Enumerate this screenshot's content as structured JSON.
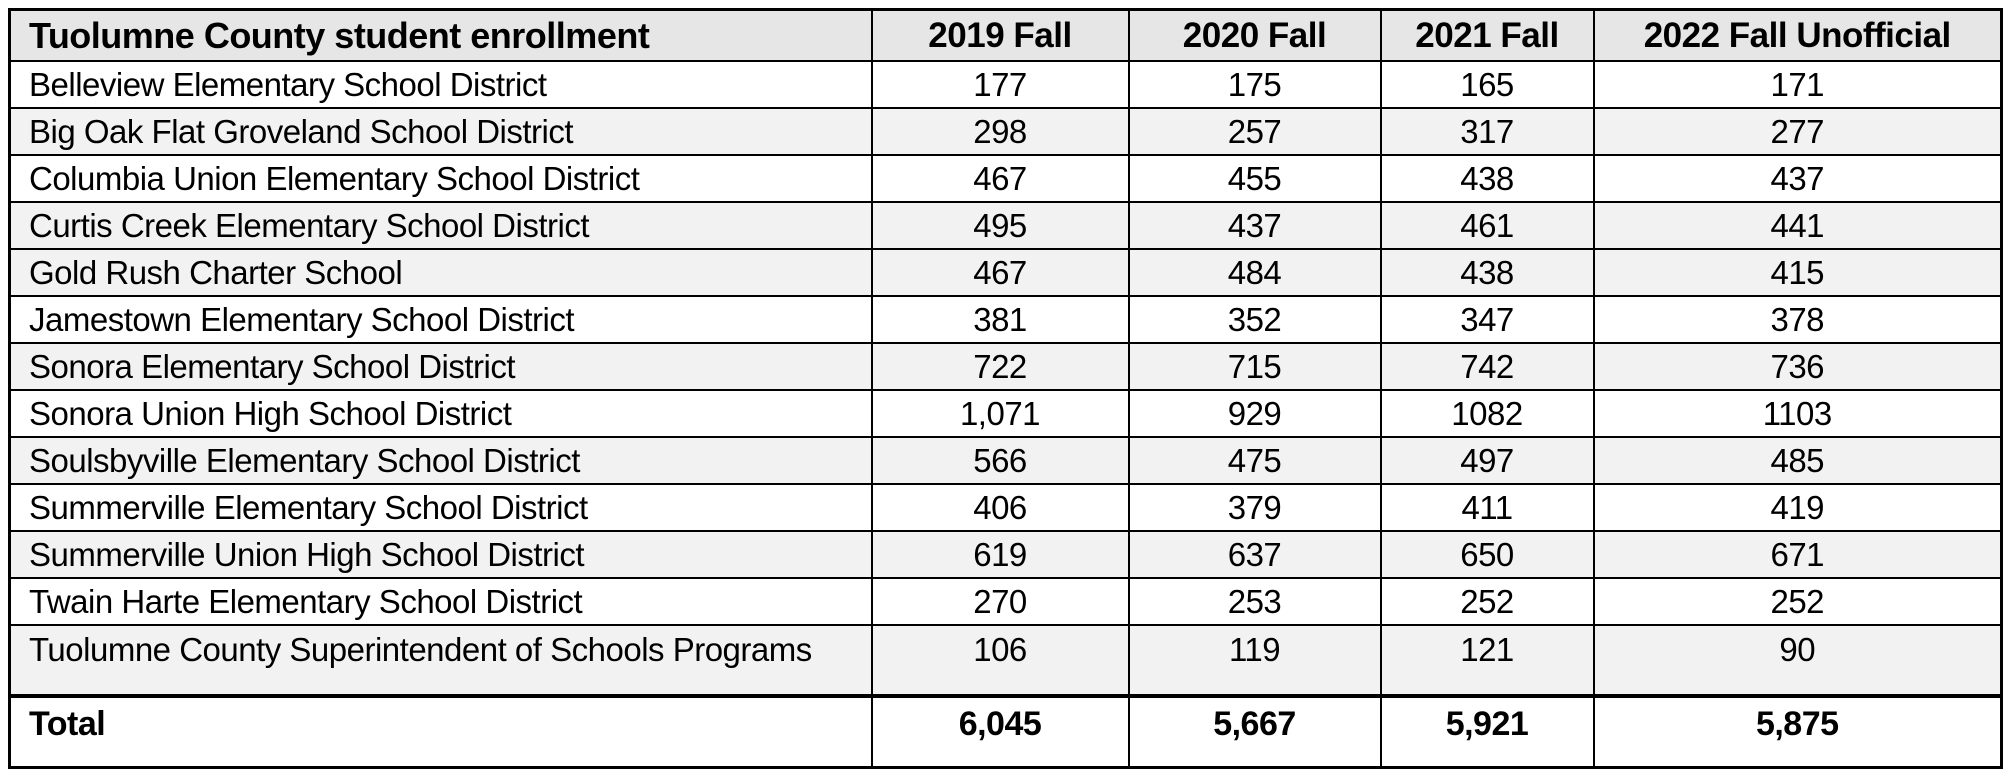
{
  "table": {
    "title": "Tuolumne County student enrollment",
    "year_columns": [
      "2019 Fall",
      "2020 Fall",
      "2021 Fall",
      "2022 Fall Unofficial"
    ],
    "rows": [
      {
        "district": "Belleview Elementary School District",
        "values": [
          "177",
          "175",
          "165",
          "171"
        ],
        "shaded": false,
        "tall": false
      },
      {
        "district": "Big Oak Flat Groveland School District",
        "values": [
          "298",
          "257",
          "317",
          "277"
        ],
        "shaded": true,
        "tall": false
      },
      {
        "district": "Columbia Union Elementary School District",
        "values": [
          "467",
          "455",
          "438",
          "437"
        ],
        "shaded": false,
        "tall": false
      },
      {
        "district": "Curtis Creek Elementary School District",
        "values": [
          "495",
          "437",
          "461",
          "441"
        ],
        "shaded": true,
        "tall": false
      },
      {
        "district": "Gold Rush Charter School",
        "values": [
          "467",
          "484",
          "438",
          "415"
        ],
        "shaded": true,
        "tall": false
      },
      {
        "district": "Jamestown Elementary School District",
        "values": [
          "381",
          "352",
          "347",
          "378"
        ],
        "shaded": false,
        "tall": false
      },
      {
        "district": "Sonora Elementary School District",
        "values": [
          "722",
          "715",
          "742",
          "736"
        ],
        "shaded": true,
        "tall": false
      },
      {
        "district": "Sonora Union High School District",
        "values": [
          "1,071",
          "929",
          "1082",
          "1103"
        ],
        "shaded": false,
        "tall": false
      },
      {
        "district": "Soulsbyville Elementary School District",
        "values": [
          "566",
          "475",
          "497",
          "485"
        ],
        "shaded": true,
        "tall": false
      },
      {
        "district": "Summerville Elementary School District",
        "values": [
          "406",
          "379",
          "411",
          "419"
        ],
        "shaded": false,
        "tall": false
      },
      {
        "district": "Summerville Union High School District",
        "values": [
          "619",
          "637",
          "650",
          "671"
        ],
        "shaded": true,
        "tall": false
      },
      {
        "district": "Twain Harte Elementary School District",
        "values": [
          "270",
          "253",
          "252",
          "252"
        ],
        "shaded": false,
        "tall": false
      },
      {
        "district": "Tuolumne County Superintendent of Schools Programs",
        "values": [
          "106",
          "119",
          "121",
          "90"
        ],
        "shaded": true,
        "tall": true
      }
    ],
    "total": {
      "label": "Total",
      "values": [
        "6,045",
        "5,667",
        "5,921",
        "5,875"
      ]
    }
  },
  "chart_data": {
    "type": "table",
    "title": "Tuolumne County student enrollment",
    "categories": [
      "Belleview Elementary School District",
      "Big Oak Flat Groveland School District",
      "Columbia Union Elementary School District",
      "Curtis Creek Elementary School District",
      "Gold Rush Charter School",
      "Jamestown Elementary School District",
      "Sonora Elementary School District",
      "Sonora Union High School District",
      "Soulsbyville Elementary School District",
      "Summerville Elementary School District",
      "Summerville Union High School District",
      "Twain Harte Elementary School District",
      "Tuolumne County Superintendent of Schools Programs"
    ],
    "series": [
      {
        "name": "2019 Fall",
        "values": [
          177,
          298,
          467,
          495,
          467,
          381,
          722,
          1071,
          566,
          406,
          619,
          270,
          106
        ],
        "total": 6045
      },
      {
        "name": "2020 Fall",
        "values": [
          175,
          257,
          455,
          437,
          484,
          352,
          715,
          929,
          475,
          379,
          637,
          253,
          119
        ],
        "total": 5667
      },
      {
        "name": "2021 Fall",
        "values": [
          165,
          317,
          438,
          461,
          438,
          347,
          742,
          1082,
          497,
          411,
          650,
          252,
          121
        ],
        "total": 5921
      },
      {
        "name": "2022 Fall Unofficial",
        "values": [
          171,
          277,
          437,
          441,
          415,
          378,
          736,
          1103,
          485,
          419,
          671,
          252,
          90
        ],
        "total": 5875
      }
    ]
  },
  "colors": {
    "header_bg": "#e7e6e6",
    "stripe_bg": "#f2f2f2",
    "border": "#000000",
    "text": "#000000",
    "page_bg": "#ffffff"
  }
}
